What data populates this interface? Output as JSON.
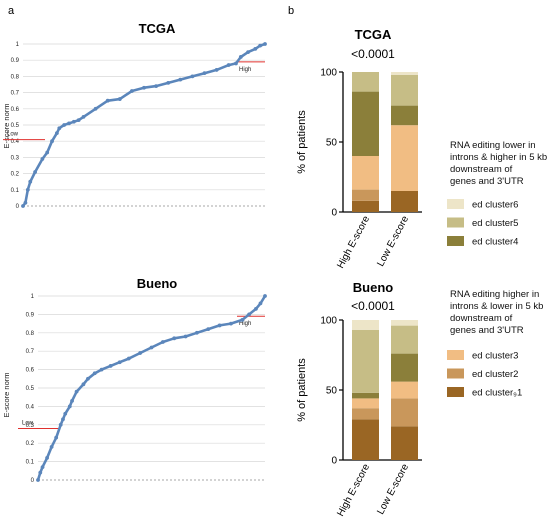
{
  "panel_labels": {
    "a": "a",
    "b": "b"
  },
  "legend_colors": {
    "ed cluster6": "#ede5c8",
    "ed cluster5": "#c6bd86",
    "ed cluster4": "#8b7f3a",
    "ed cluster3": "#f1bd83",
    "ed cluster2": "#c9975b",
    "ed cluster1": "#9a6624"
  },
  "legend_top": {
    "note_lines": [
      "RNA editing lower in",
      "introns & higher in 5 kb",
      "downstream of",
      "genes and 3'UTR"
    ],
    "items": [
      "ed cluster6",
      "ed cluster5",
      "ed cluster4"
    ]
  },
  "legend_bottom": {
    "note_lines": [
      "RNA editing higher in",
      "introns & lower in 5 kb",
      "downstream of",
      "genes and 3'UTR"
    ],
    "items": [
      "ed cluster3",
      "ed cluster2",
      "ed cluster₉1"
    ]
  },
  "chart_data": [
    {
      "type": "line",
      "title": "TCGA",
      "ylabel": "E-score norm",
      "ylim": [
        0,
        1
      ],
      "yticks": [
        "0",
        "0.1",
        "0.2",
        "0.3",
        "0.4",
        "0.5",
        "0.6",
        "0.7",
        "0.8",
        "0.9",
        "1"
      ],
      "grid": true,
      "line_color": "#5b86bb",
      "threshold_color": "#e0312e",
      "thresholds": [
        {
          "label": "Low",
          "y": 0.41,
          "side": "left"
        },
        {
          "label": "High",
          "y": 0.89,
          "side": "right"
        }
      ],
      "x": [
        0,
        0.01,
        0.02,
        0.03,
        0.05,
        0.08,
        0.1,
        0.12,
        0.14,
        0.15,
        0.17,
        0.19,
        0.21,
        0.23,
        0.25,
        0.3,
        0.35,
        0.4,
        0.45,
        0.5,
        0.55,
        0.6,
        0.65,
        0.7,
        0.75,
        0.8,
        0.85,
        0.88,
        0.9,
        0.93,
        0.96,
        0.98,
        1.0
      ],
      "y": [
        0,
        0.02,
        0.1,
        0.15,
        0.21,
        0.29,
        0.33,
        0.4,
        0.45,
        0.48,
        0.5,
        0.51,
        0.52,
        0.53,
        0.55,
        0.6,
        0.65,
        0.66,
        0.71,
        0.73,
        0.74,
        0.76,
        0.78,
        0.8,
        0.82,
        0.84,
        0.87,
        0.88,
        0.92,
        0.95,
        0.97,
        0.99,
        1.0
      ]
    },
    {
      "type": "line",
      "title": "Bueno",
      "ylabel": "E-score norm",
      "ylim": [
        0,
        1
      ],
      "yticks": [
        "0",
        "0.1",
        "0.2",
        "0.3",
        "0.4",
        "0.5",
        "0.6",
        "0.7",
        "0.8",
        "0.9",
        "1"
      ],
      "grid": true,
      "line_color": "#5b86bb",
      "threshold_color": "#e0312e",
      "thresholds": [
        {
          "label": "Low",
          "y": 0.28,
          "side": "left"
        },
        {
          "label": "High",
          "y": 0.89,
          "side": "right"
        }
      ],
      "x": [
        0,
        0.01,
        0.02,
        0.04,
        0.06,
        0.08,
        0.1,
        0.11,
        0.12,
        0.14,
        0.15,
        0.17,
        0.2,
        0.22,
        0.25,
        0.28,
        0.32,
        0.36,
        0.4,
        0.45,
        0.5,
        0.55,
        0.6,
        0.65,
        0.7,
        0.75,
        0.8,
        0.85,
        0.9,
        0.93,
        0.96,
        0.98,
        1.0
      ],
      "y": [
        0,
        0.04,
        0.07,
        0.12,
        0.18,
        0.23,
        0.3,
        0.33,
        0.36,
        0.4,
        0.43,
        0.48,
        0.52,
        0.55,
        0.58,
        0.6,
        0.62,
        0.64,
        0.66,
        0.69,
        0.72,
        0.75,
        0.77,
        0.78,
        0.8,
        0.82,
        0.84,
        0.85,
        0.87,
        0.9,
        0.93,
        0.96,
        1.0
      ]
    },
    {
      "type": "bar",
      "stacked": true,
      "title": "TCGA",
      "subtitle": "<0.0001",
      "ylabel": "% of patients",
      "ylim": [
        0,
        100
      ],
      "yticks": [
        "0",
        "50",
        "100"
      ],
      "categories": [
        "High E-score",
        "Low E-score"
      ],
      "series": [
        {
          "name": "ed cluster1",
          "values": [
            8,
            15
          ]
        },
        {
          "name": "ed cluster2",
          "values": [
            8,
            0
          ]
        },
        {
          "name": "ed cluster3",
          "values": [
            24,
            47
          ]
        },
        {
          "name": "ed cluster4",
          "values": [
            46,
            14
          ]
        },
        {
          "name": "ed cluster5",
          "values": [
            14,
            22
          ]
        },
        {
          "name": "ed cluster6",
          "values": [
            0,
            2
          ]
        }
      ]
    },
    {
      "type": "bar",
      "stacked": true,
      "title": "Bueno",
      "subtitle": "<0.0001",
      "ylabel": "% of patients",
      "ylim": [
        0,
        100
      ],
      "yticks": [
        "0",
        "50",
        "100"
      ],
      "categories": [
        "High E-score",
        "Low E-score"
      ],
      "series": [
        {
          "name": "ed cluster1",
          "values": [
            29,
            24
          ]
        },
        {
          "name": "ed cluster2",
          "values": [
            8,
            20
          ]
        },
        {
          "name": "ed cluster3",
          "values": [
            7,
            12
          ]
        },
        {
          "name": "ed cluster4",
          "values": [
            4,
            20
          ]
        },
        {
          "name": "ed cluster5",
          "values": [
            45,
            20
          ]
        },
        {
          "name": "ed cluster6",
          "values": [
            7,
            4
          ]
        }
      ]
    }
  ]
}
